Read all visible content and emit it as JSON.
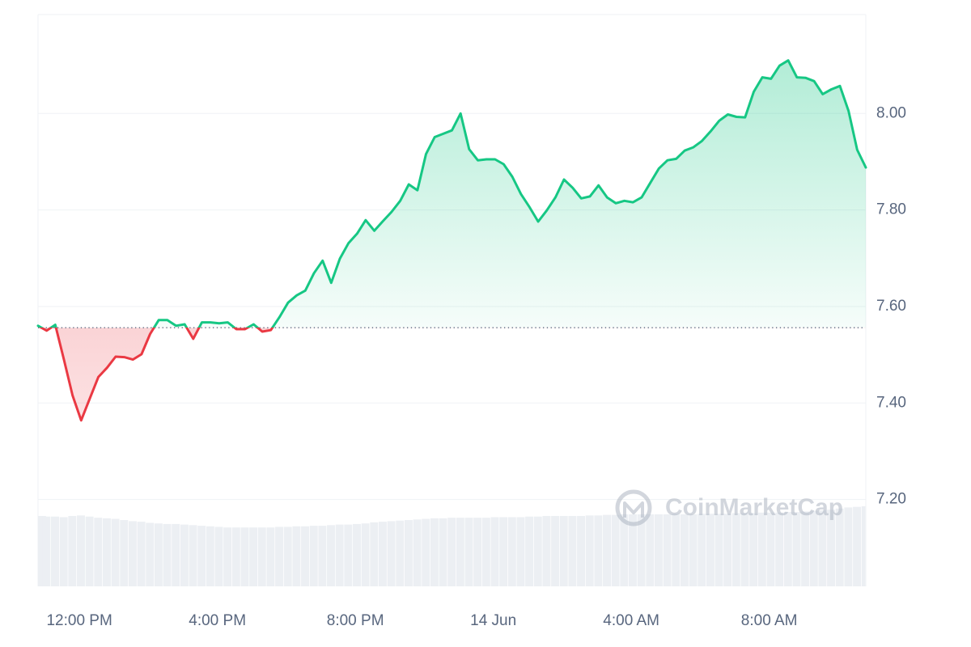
{
  "chart_data": {
    "type": "line",
    "watermark": "CoinMarketCap",
    "x": [
      10.8,
      11.05,
      11.3,
      11.55,
      11.8,
      12.05,
      12.3,
      12.55,
      12.8,
      13.05,
      13.3,
      13.55,
      13.8,
      14.05,
      14.3,
      14.55,
      14.8,
      15.05,
      15.3,
      15.55,
      15.8,
      16.05,
      16.3,
      16.55,
      16.8,
      17.05,
      17.3,
      17.55,
      17.8,
      18.05,
      18.3,
      18.55,
      18.8,
      19.05,
      19.3,
      19.55,
      19.8,
      20.05,
      20.3,
      20.55,
      20.8,
      21.05,
      21.3,
      21.55,
      21.8,
      22.05,
      22.3,
      22.55,
      22.8,
      23.05,
      23.3,
      23.55,
      23.8,
      24.05,
      24.3,
      24.55,
      24.8,
      25.05,
      25.3,
      25.55,
      25.8,
      26.05,
      26.3,
      26.55,
      26.8,
      27.05,
      27.3,
      27.55,
      27.8,
      28.05,
      28.3,
      28.55,
      28.8,
      29.05,
      29.3,
      29.55,
      29.8,
      30.05,
      30.3,
      30.55,
      30.8,
      31.05,
      31.3,
      31.55,
      31.8,
      32.05,
      32.3,
      32.55,
      32.8,
      33.05,
      33.3,
      33.55,
      33.8,
      34.05,
      34.3,
      34.55,
      34.8
    ],
    "values": [
      7.56,
      7.55,
      7.562,
      7.49,
      7.416,
      7.364,
      7.409,
      7.454,
      7.473,
      7.496,
      7.495,
      7.49,
      7.501,
      7.543,
      7.572,
      7.572,
      7.56,
      7.563,
      7.533,
      7.567,
      7.567,
      7.565,
      7.567,
      7.553,
      7.553,
      7.563,
      7.548,
      7.551,
      7.578,
      7.608,
      7.623,
      7.633,
      7.669,
      7.695,
      7.649,
      7.699,
      7.731,
      7.751,
      7.779,
      7.757,
      7.777,
      7.796,
      7.819,
      7.853,
      7.841,
      7.916,
      7.951,
      7.958,
      7.965,
      8.0,
      7.926,
      7.903,
      7.905,
      7.905,
      7.895,
      7.869,
      7.833,
      7.806,
      7.776,
      7.799,
      7.826,
      7.863,
      7.846,
      7.824,
      7.828,
      7.851,
      7.826,
      7.814,
      7.819,
      7.816,
      7.826,
      7.856,
      7.886,
      7.903,
      7.906,
      7.923,
      7.93,
      7.943,
      7.963,
      7.985,
      7.998,
      7.993,
      7.992,
      8.045,
      8.075,
      8.072,
      8.099,
      8.11,
      8.075,
      8.074,
      8.067,
      8.04,
      8.05,
      8.057,
      8.005,
      7.925,
      7.888
    ],
    "volume": [
      12.3,
      12.2,
      12.2,
      12.1,
      12.3,
      12.4,
      12.2,
      12.0,
      11.9,
      11.8,
      11.6,
      11.4,
      11.3,
      11.1,
      11.0,
      10.9,
      10.9,
      10.8,
      10.7,
      10.6,
      10.5,
      10.4,
      10.3,
      10.3,
      10.3,
      10.3,
      10.3,
      10.3,
      10.4,
      10.4,
      10.5,
      10.5,
      10.6,
      10.6,
      10.7,
      10.8,
      10.8,
      10.9,
      11.0,
      11.2,
      11.3,
      11.4,
      11.5,
      11.6,
      11.7,
      11.8,
      11.9,
      11.9,
      12.0,
      12.0,
      12.0,
      12.0,
      12.0,
      12.1,
      12.1,
      12.1,
      12.1,
      12.2,
      12.2,
      12.3,
      12.3,
      12.3,
      12.3,
      12.3,
      12.4,
      12.4,
      12.5,
      12.5,
      12.6,
      12.6,
      12.6,
      12.6,
      12.6,
      12.6,
      12.7,
      12.6,
      12.6,
      12.7,
      12.7,
      12.7,
      12.7,
      12.8,
      12.8,
      12.8,
      12.9,
      12.9,
      12.9,
      13.0,
      13.0,
      13.1,
      13.2,
      13.3,
      13.4,
      13.6,
      13.8,
      13.9,
      14.0
    ],
    "baseline": 7.556,
    "up_color": "#16c784",
    "down_color": "#ea3943",
    "volume_color": "#eceff3",
    "xlim": [
      10.8,
      34.8
    ],
    "xticks": [
      {
        "value": 12,
        "label": "12:00 PM"
      },
      {
        "value": 16,
        "label": "4:00 PM"
      },
      {
        "value": 20,
        "label": "8:00 PM"
      },
      {
        "value": 24,
        "label": "14 Jun"
      },
      {
        "value": 28,
        "label": "4:00 AM"
      },
      {
        "value": 32,
        "label": "8:00 AM"
      }
    ],
    "ylim": [
      7.02,
      8.205
    ],
    "yticks": [
      {
        "value": 7.2,
        "label": "7.20"
      },
      {
        "value": 7.4,
        "label": "7.40"
      },
      {
        "value": 7.6,
        "label": "7.60"
      },
      {
        "value": 7.8,
        "label": "7.80"
      },
      {
        "value": 8.0,
        "label": "8.00"
      }
    ],
    "y2lim": [
      0,
      100
    ],
    "grid": true
  }
}
